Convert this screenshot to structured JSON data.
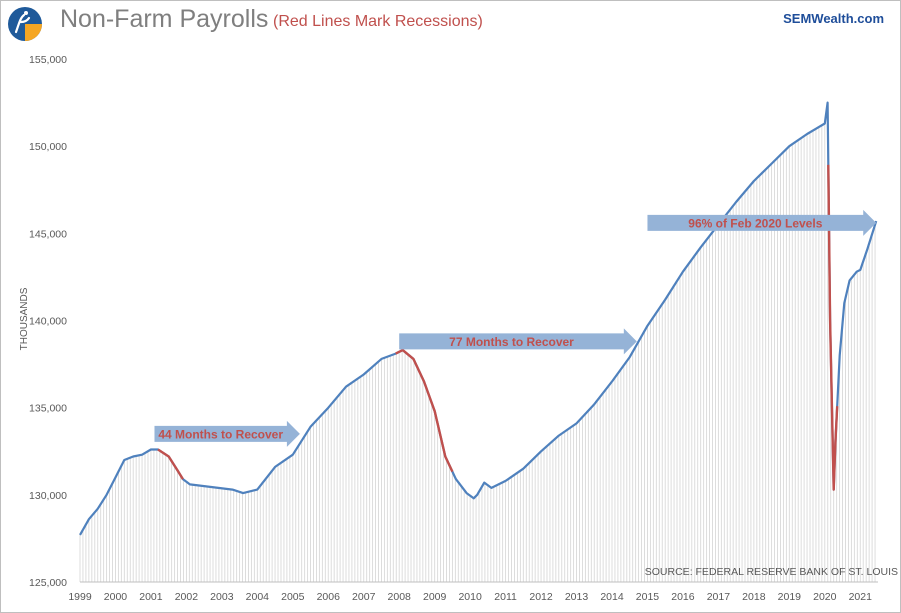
{
  "header": {
    "title": "Non-Farm Payrolls",
    "subtitle": "(Red Lines Mark Recessions)",
    "brand": "SEMWealth.com"
  },
  "colors": {
    "line": "#4f81bd",
    "recession": "#c0504d",
    "arrow": "#95b3d7",
    "annotation_text": "#c0504d",
    "axis_text": "#595959",
    "grid_bars": "#d9d9d9"
  },
  "chart_data": {
    "type": "line",
    "title": "Non-Farm Payrolls",
    "subtitle": "(Red Lines Mark Recessions)",
    "ylabel": "THOUSANDS",
    "xlabel": "",
    "ylim": [
      125000,
      155000
    ],
    "xlim": [
      1999.0,
      2021.5
    ],
    "y_ticks": [
      {
        "value": 125000,
        "label": "125,000"
      },
      {
        "value": 130000,
        "label": "130,000"
      },
      {
        "value": 135000,
        "label": "135,000"
      },
      {
        "value": 140000,
        "label": "140,000"
      },
      {
        "value": 145000,
        "label": "145,000"
      },
      {
        "value": 150000,
        "label": "150,000"
      },
      {
        "value": 155000,
        "label": "155,000"
      }
    ],
    "x_ticks": [
      "1999",
      "2000",
      "2001",
      "2002",
      "2003",
      "2004",
      "2005",
      "2006",
      "2007",
      "2008",
      "2009",
      "2010",
      "2011",
      "2012",
      "2013",
      "2014",
      "2015",
      "2016",
      "2017",
      "2018",
      "2019",
      "2020",
      "2021"
    ],
    "series": [
      {
        "name": "Non-Farm Payrolls",
        "x": [
          1999.0,
          1999.25,
          1999.5,
          1999.75,
          2000.0,
          2000.25,
          2000.5,
          2000.75,
          2001.0,
          2001.2,
          2001.5,
          2001.75,
          2001.9,
          2002.1,
          2002.5,
          2002.9,
          2003.3,
          2003.6,
          2004.0,
          2004.5,
          2005.0,
          2005.5,
          2006.0,
          2006.5,
          2007.0,
          2007.5,
          2007.9,
          2008.1,
          2008.4,
          2008.7,
          2009.0,
          2009.3,
          2009.6,
          2009.9,
          2010.1,
          2010.2,
          2010.4,
          2010.6,
          2011.0,
          2011.5,
          2012.0,
          2012.5,
          2013.0,
          2013.5,
          2014.0,
          2014.5,
          2015.0,
          2015.5,
          2016.0,
          2016.5,
          2017.0,
          2017.5,
          2018.0,
          2018.5,
          2019.0,
          2019.5,
          2020.0,
          2020.08,
          2020.15,
          2020.25,
          2020.3,
          2020.42,
          2020.55,
          2020.7,
          2020.9,
          2021.0,
          2021.2,
          2021.45
        ],
        "y": [
          127700,
          128600,
          129200,
          130000,
          131000,
          132000,
          132200,
          132300,
          132600,
          132600,
          132200,
          131400,
          130900,
          130600,
          130500,
          130400,
          130300,
          130100,
          130300,
          131600,
          132300,
          133900,
          135000,
          136200,
          136900,
          137800,
          138100,
          138300,
          137800,
          136500,
          134800,
          132200,
          130900,
          130100,
          129800,
          130000,
          130700,
          130400,
          130800,
          131500,
          132500,
          133400,
          134100,
          135200,
          136500,
          137900,
          139700,
          141200,
          142800,
          144200,
          145500,
          146800,
          148000,
          149000,
          150000,
          150700,
          151300,
          152500,
          140000,
          130300,
          133000,
          138000,
          141000,
          142300,
          142800,
          142900,
          144100,
          145700
        ]
      }
    ],
    "recessions": [
      {
        "start": 2001.2,
        "end": 2001.9
      },
      {
        "start": 2007.9,
        "end": 2009.5
      },
      {
        "start": 2020.1,
        "end": 2020.35
      }
    ],
    "annotations": [
      {
        "text": "44 Months to Recover",
        "x_start": 2001.1,
        "x_end": 2005.2,
        "y": 133500
      },
      {
        "text": "77 Months to Recover",
        "x_start": 2008.0,
        "x_end": 2014.7,
        "y": 138800
      },
      {
        "text": "96% of Feb 2020 Levels",
        "x_start": 2015.0,
        "x_end": 2021.45,
        "y": 145600
      }
    ],
    "source": "SOURCE: FEDERAL RESERVE BANK OF ST. LOUIS"
  }
}
